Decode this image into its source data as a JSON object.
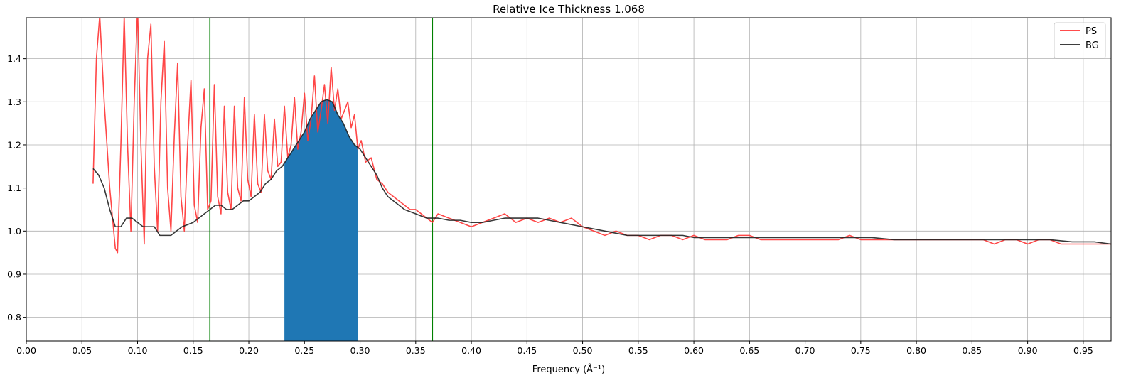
{
  "chart_data": {
    "type": "line",
    "title": "Relative Ice Thickness 1.068",
    "xlabel": "Frequency (Å⁻¹)",
    "ylabel": "",
    "xlim": [
      0.0,
      0.975
    ],
    "ylim": [
      0.745,
      1.495
    ],
    "x_ticks": [
      "0.00",
      "0.05",
      "0.10",
      "0.15",
      "0.20",
      "0.25",
      "0.30",
      "0.35",
      "0.40",
      "0.45",
      "0.50",
      "0.55",
      "0.60",
      "0.65",
      "0.70",
      "0.75",
      "0.80",
      "0.85",
      "0.90",
      "0.95"
    ],
    "y_ticks": [
      "0.8",
      "0.9",
      "1.0",
      "1.1",
      "1.2",
      "1.3",
      "1.4"
    ],
    "grid": true,
    "legend": {
      "placement": "top-right",
      "entries": [
        "PS",
        "BG"
      ]
    },
    "vertical_lines": {
      "color": "#008000",
      "x": [
        0.165,
        0.365
      ]
    },
    "shaded_band": {
      "color": "#1f77b4",
      "x_start": 0.232,
      "x_end": 0.298
    },
    "series": [
      {
        "name": "PS",
        "color": "#ff3333",
        "x": [
          0.06,
          0.063,
          0.066,
          0.07,
          0.075,
          0.08,
          0.082,
          0.085,
          0.088,
          0.091,
          0.094,
          0.097,
          0.1,
          0.103,
          0.106,
          0.109,
          0.112,
          0.115,
          0.118,
          0.121,
          0.124,
          0.127,
          0.13,
          0.133,
          0.136,
          0.139,
          0.142,
          0.145,
          0.148,
          0.151,
          0.154,
          0.157,
          0.16,
          0.163,
          0.166,
          0.169,
          0.172,
          0.175,
          0.178,
          0.181,
          0.184,
          0.187,
          0.19,
          0.193,
          0.196,
          0.199,
          0.202,
          0.205,
          0.208,
          0.211,
          0.214,
          0.217,
          0.22,
          0.223,
          0.226,
          0.229,
          0.232,
          0.235,
          0.238,
          0.241,
          0.244,
          0.247,
          0.25,
          0.253,
          0.256,
          0.259,
          0.262,
          0.265,
          0.268,
          0.271,
          0.274,
          0.277,
          0.28,
          0.283,
          0.286,
          0.289,
          0.292,
          0.295,
          0.298,
          0.301,
          0.305,
          0.31,
          0.315,
          0.32,
          0.325,
          0.33,
          0.335,
          0.34,
          0.345,
          0.35,
          0.355,
          0.36,
          0.365,
          0.37,
          0.38,
          0.39,
          0.4,
          0.41,
          0.42,
          0.43,
          0.44,
          0.45,
          0.46,
          0.47,
          0.48,
          0.49,
          0.5,
          0.51,
          0.52,
          0.53,
          0.54,
          0.55,
          0.56,
          0.57,
          0.58,
          0.59,
          0.6,
          0.61,
          0.62,
          0.63,
          0.64,
          0.65,
          0.66,
          0.67,
          0.68,
          0.69,
          0.7,
          0.71,
          0.72,
          0.73,
          0.74,
          0.75,
          0.76,
          0.77,
          0.78,
          0.79,
          0.8,
          0.81,
          0.82,
          0.83,
          0.84,
          0.85,
          0.86,
          0.87,
          0.88,
          0.89,
          0.9,
          0.91,
          0.92,
          0.93,
          0.94,
          0.95,
          0.96,
          0.97,
          0.975
        ],
        "y": [
          1.11,
          1.4,
          1.5,
          1.3,
          1.1,
          0.96,
          0.95,
          1.2,
          1.5,
          1.2,
          1.0,
          1.3,
          1.52,
          1.2,
          0.97,
          1.4,
          1.48,
          1.15,
          1.0,
          1.3,
          1.44,
          1.1,
          1.0,
          1.22,
          1.39,
          1.08,
          1.0,
          1.2,
          1.35,
          1.06,
          1.02,
          1.24,
          1.33,
          1.05,
          1.07,
          1.34,
          1.08,
          1.04,
          1.29,
          1.09,
          1.05,
          1.29,
          1.1,
          1.07,
          1.31,
          1.12,
          1.08,
          1.27,
          1.11,
          1.09,
          1.27,
          1.14,
          1.12,
          1.26,
          1.15,
          1.16,
          1.29,
          1.17,
          1.2,
          1.31,
          1.19,
          1.23,
          1.32,
          1.21,
          1.26,
          1.36,
          1.23,
          1.28,
          1.34,
          1.25,
          1.38,
          1.28,
          1.33,
          1.26,
          1.28,
          1.3,
          1.24,
          1.27,
          1.19,
          1.21,
          1.16,
          1.17,
          1.12,
          1.11,
          1.09,
          1.08,
          1.07,
          1.06,
          1.05,
          1.05,
          1.04,
          1.03,
          1.02,
          1.04,
          1.03,
          1.02,
          1.01,
          1.02,
          1.03,
          1.04,
          1.02,
          1.03,
          1.02,
          1.03,
          1.02,
          1.03,
          1.01,
          1.0,
          0.99,
          1.0,
          0.99,
          0.99,
          0.98,
          0.99,
          0.99,
          0.98,
          0.99,
          0.98,
          0.98,
          0.98,
          0.99,
          0.99,
          0.98,
          0.98,
          0.98,
          0.98,
          0.98,
          0.98,
          0.98,
          0.98,
          0.99,
          0.98,
          0.98,
          0.98,
          0.98,
          0.98,
          0.98,
          0.98,
          0.98,
          0.98,
          0.98,
          0.98,
          0.98,
          0.97,
          0.98,
          0.98,
          0.97,
          0.98,
          0.98,
          0.97,
          0.97,
          0.97,
          0.97,
          0.97,
          0.97
        ]
      },
      {
        "name": "BG",
        "color": "#222222",
        "x": [
          0.06,
          0.065,
          0.07,
          0.075,
          0.08,
          0.085,
          0.09,
          0.095,
          0.1,
          0.105,
          0.11,
          0.115,
          0.12,
          0.125,
          0.13,
          0.135,
          0.14,
          0.145,
          0.15,
          0.155,
          0.16,
          0.165,
          0.17,
          0.175,
          0.18,
          0.185,
          0.19,
          0.195,
          0.2,
          0.205,
          0.21,
          0.215,
          0.22,
          0.225,
          0.23,
          0.235,
          0.24,
          0.245,
          0.25,
          0.255,
          0.26,
          0.265,
          0.27,
          0.275,
          0.28,
          0.285,
          0.29,
          0.295,
          0.3,
          0.305,
          0.31,
          0.315,
          0.32,
          0.325,
          0.33,
          0.335,
          0.34,
          0.345,
          0.35,
          0.355,
          0.36,
          0.365,
          0.37,
          0.38,
          0.39,
          0.4,
          0.41,
          0.42,
          0.43,
          0.44,
          0.45,
          0.46,
          0.47,
          0.48,
          0.49,
          0.5,
          0.51,
          0.52,
          0.53,
          0.54,
          0.55,
          0.56,
          0.57,
          0.58,
          0.59,
          0.6,
          0.62,
          0.64,
          0.66,
          0.68,
          0.7,
          0.72,
          0.74,
          0.76,
          0.78,
          0.8,
          0.82,
          0.84,
          0.86,
          0.88,
          0.9,
          0.92,
          0.94,
          0.96,
          0.975
        ],
        "y": [
          1.145,
          1.13,
          1.1,
          1.05,
          1.01,
          1.01,
          1.03,
          1.03,
          1.02,
          1.01,
          1.01,
          1.01,
          0.99,
          0.99,
          0.99,
          1.0,
          1.01,
          1.015,
          1.02,
          1.03,
          1.04,
          1.05,
          1.06,
          1.06,
          1.05,
          1.05,
          1.06,
          1.07,
          1.07,
          1.08,
          1.09,
          1.11,
          1.12,
          1.14,
          1.15,
          1.17,
          1.19,
          1.21,
          1.23,
          1.26,
          1.28,
          1.3,
          1.305,
          1.3,
          1.27,
          1.25,
          1.22,
          1.2,
          1.19,
          1.17,
          1.15,
          1.13,
          1.1,
          1.08,
          1.07,
          1.06,
          1.05,
          1.045,
          1.04,
          1.035,
          1.03,
          1.03,
          1.03,
          1.025,
          1.025,
          1.02,
          1.02,
          1.025,
          1.03,
          1.03,
          1.03,
          1.03,
          1.025,
          1.02,
          1.015,
          1.01,
          1.005,
          1.0,
          0.995,
          0.99,
          0.99,
          0.99,
          0.99,
          0.99,
          0.99,
          0.985,
          0.985,
          0.985,
          0.985,
          0.985,
          0.985,
          0.985,
          0.985,
          0.985,
          0.98,
          0.98,
          0.98,
          0.98,
          0.98,
          0.98,
          0.98,
          0.98,
          0.975,
          0.975,
          0.97
        ]
      }
    ]
  }
}
